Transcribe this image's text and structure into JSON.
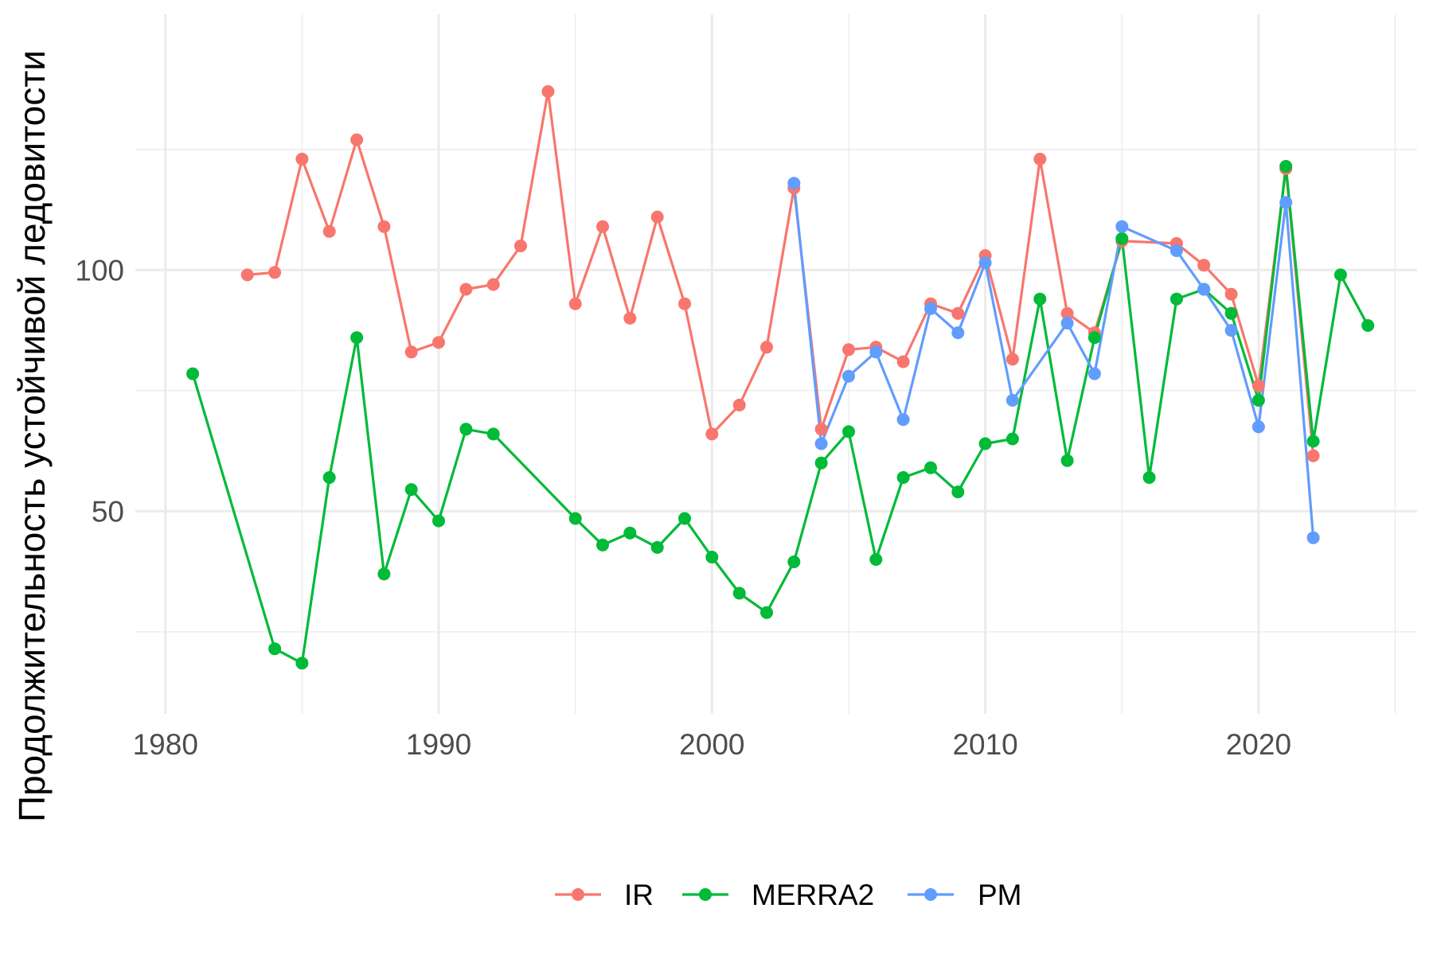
{
  "chart_data": {
    "type": "line",
    "title": "",
    "xlabel": "",
    "ylabel": "Продолжительность устойчивой ледовитости",
    "xlim": [
      1978.9,
      1980.0
    ],
    "ylim": [
      8,
      153
    ],
    "x_ticks": [
      "1980",
      "1990",
      "2000",
      "2010",
      "2020"
    ],
    "x_tick_values": [
      1980,
      1990,
      2000,
      2010,
      2020
    ],
    "y_ticks": [
      "50",
      "100"
    ],
    "y_tick_values": [
      50,
      100
    ],
    "grid": true,
    "legend_position": "bottom",
    "series": [
      {
        "name": "IR",
        "color": "#F8766D",
        "points": [
          [
            1983,
            99
          ],
          [
            1984,
            99.5
          ],
          [
            1985,
            123
          ],
          [
            1986,
            108
          ],
          [
            1987,
            127
          ],
          [
            1988,
            109
          ],
          [
            1989,
            83
          ],
          [
            1990,
            85
          ],
          [
            1991,
            96
          ],
          [
            1992,
            97
          ],
          [
            1993,
            105
          ],
          [
            1994,
            137
          ],
          [
            1995,
            93
          ],
          [
            1996,
            109
          ],
          [
            1997,
            90
          ],
          [
            1998,
            111
          ],
          [
            1999,
            93
          ],
          [
            2000,
            66
          ],
          [
            2001,
            72
          ],
          [
            2002,
            84
          ],
          [
            2003,
            117
          ],
          [
            2004,
            67
          ],
          [
            2005,
            83.5
          ],
          [
            2006,
            84
          ],
          [
            2007,
            81
          ],
          [
            2008,
            93
          ],
          [
            2009,
            91
          ],
          [
            2010,
            103
          ],
          [
            2011,
            81.5
          ],
          [
            2012,
            123
          ],
          [
            2013,
            91
          ],
          [
            2014,
            87
          ],
          [
            2015,
            106
          ],
          [
            2017,
            105.5
          ],
          [
            2018,
            101
          ],
          [
            2019,
            95
          ],
          [
            2020,
            76
          ],
          [
            2021,
            121
          ],
          [
            2022,
            61.5
          ]
        ]
      },
      {
        "name": "MERRA2",
        "color": "#00BA38",
        "points": [
          [
            1981,
            78.5
          ],
          [
            1984,
            21.5
          ],
          [
            1985,
            18.5
          ],
          [
            1986,
            57
          ],
          [
            1987,
            86
          ],
          [
            1988,
            37
          ],
          [
            1989,
            54.5
          ],
          [
            1990,
            48
          ],
          [
            1991,
            67
          ],
          [
            1992,
            66
          ],
          [
            1995,
            48.5
          ],
          [
            1996,
            43
          ],
          [
            1997,
            45.5
          ],
          [
            1998,
            42.5
          ],
          [
            1999,
            48.5
          ],
          [
            2000,
            40.5
          ],
          [
            2001,
            33
          ],
          [
            2002,
            29
          ],
          [
            2003,
            39.5
          ],
          [
            2004,
            60
          ],
          [
            2005,
            66.5
          ],
          [
            2006,
            40
          ],
          [
            2007,
            57
          ],
          [
            2008,
            59
          ],
          [
            2009,
            54
          ],
          [
            2010,
            64
          ],
          [
            2011,
            65
          ],
          [
            2012,
            94
          ],
          [
            2013,
            60.5
          ],
          [
            2014,
            86
          ],
          [
            2015,
            106.5
          ],
          [
            2016,
            57
          ],
          [
            2017,
            94
          ],
          [
            2018,
            96
          ],
          [
            2019,
            91
          ],
          [
            2020,
            73
          ],
          [
            2021,
            121.5
          ],
          [
            2022,
            64.5
          ],
          [
            2023,
            99
          ],
          [
            2024,
            88.5
          ]
        ]
      },
      {
        "name": "PM",
        "color": "#619CFF",
        "points": [
          [
            2003,
            118
          ],
          [
            2004,
            64
          ],
          [
            2005,
            78
          ],
          [
            2006,
            83
          ],
          [
            2007,
            69
          ],
          [
            2008,
            92
          ],
          [
            2009,
            87
          ],
          [
            2010,
            101.5
          ],
          [
            2011,
            73
          ],
          [
            2013,
            89
          ],
          [
            2014,
            78.5
          ],
          [
            2015,
            109
          ],
          [
            2017,
            104
          ],
          [
            2018,
            96
          ],
          [
            2019,
            87.5
          ],
          [
            2020,
            67.5
          ],
          [
            2021,
            114
          ],
          [
            2022,
            44.5
          ]
        ]
      }
    ]
  }
}
